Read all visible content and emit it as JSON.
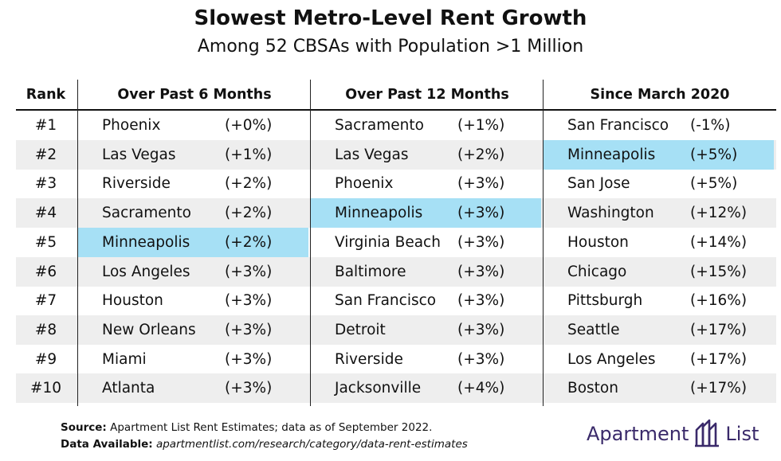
{
  "title": "Slowest Metro-Level Rent Growth",
  "subtitle": "Among 52 CBSAs with Population >1 Million",
  "columns": {
    "rank": "Rank",
    "six_months": "Over Past 6 Months",
    "twelve_months": "Over Past 12 Months",
    "since_2020": "Since March 2020"
  },
  "rows": [
    {
      "rank": "#1",
      "six": {
        "city": "Phoenix",
        "change": "(+0%)"
      },
      "twelve": {
        "city": "Sacramento",
        "change": "(+1%)"
      },
      "since": {
        "city": "San Francisco",
        "change": "(-1%)"
      }
    },
    {
      "rank": "#2",
      "six": {
        "city": "Las Vegas",
        "change": "(+1%)"
      },
      "twelve": {
        "city": "Las Vegas",
        "change": "(+2%)"
      },
      "since": {
        "city": "Minneapolis",
        "change": "(+5%)"
      }
    },
    {
      "rank": "#3",
      "six": {
        "city": "Riverside",
        "change": "(+2%)"
      },
      "twelve": {
        "city": "Phoenix",
        "change": "(+3%)"
      },
      "since": {
        "city": "San Jose",
        "change": "(+5%)"
      }
    },
    {
      "rank": "#4",
      "six": {
        "city": "Sacramento",
        "change": "(+2%)"
      },
      "twelve": {
        "city": "Minneapolis",
        "change": "(+3%)"
      },
      "since": {
        "city": "Washington",
        "change": "(+12%)"
      }
    },
    {
      "rank": "#5",
      "six": {
        "city": "Minneapolis",
        "change": "(+2%)"
      },
      "twelve": {
        "city": "Virginia Beach",
        "change": "(+3%)"
      },
      "since": {
        "city": "Houston",
        "change": "(+14%)"
      }
    },
    {
      "rank": "#6",
      "six": {
        "city": "Los Angeles",
        "change": "(+3%)"
      },
      "twelve": {
        "city": "Baltimore",
        "change": "(+3%)"
      },
      "since": {
        "city": "Chicago",
        "change": "(+15%)"
      }
    },
    {
      "rank": "#7",
      "six": {
        "city": "Houston",
        "change": "(+3%)"
      },
      "twelve": {
        "city": "San Francisco",
        "change": "(+3%)"
      },
      "since": {
        "city": "Pittsburgh",
        "change": "(+16%)"
      }
    },
    {
      "rank": "#8",
      "six": {
        "city": "New Orleans",
        "change": "(+3%)"
      },
      "twelve": {
        "city": "Detroit",
        "change": "(+3%)"
      },
      "since": {
        "city": "Seattle",
        "change": "(+17%)"
      }
    },
    {
      "rank": "#9",
      "six": {
        "city": "Miami",
        "change": "(+3%)"
      },
      "twelve": {
        "city": "Riverside",
        "change": "(+3%)"
      },
      "since": {
        "city": "Los Angeles",
        "change": "(+17%)"
      }
    },
    {
      "rank": "#10",
      "six": {
        "city": "Atlanta",
        "change": "(+3%)"
      },
      "twelve": {
        "city": "Jacksonville",
        "change": "(+4%)"
      },
      "since": {
        "city": "Boston",
        "change": "(+17%)"
      }
    }
  ],
  "highlight_city": "Minneapolis",
  "colors": {
    "highlight": "#a6e0f5",
    "stripe": "#eeeeee",
    "logo": "#3a2a6a"
  },
  "footer": {
    "source_label": "Source:",
    "source_text": "Apartment List Rent Estimates; data as of September 2022.",
    "data_label": "Data Available:",
    "data_text": "apartmentlist.com/research/category/data-rent-estimates"
  },
  "logo": {
    "word1": "Apartment",
    "word2": "List",
    "icon": "apartment-list-logo-icon"
  }
}
